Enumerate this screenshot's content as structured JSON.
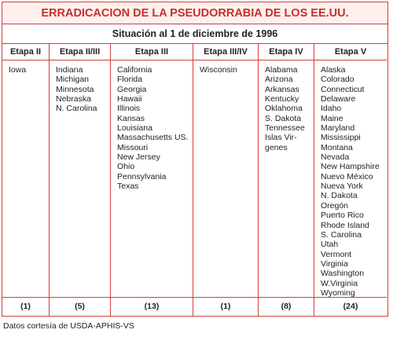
{
  "table": {
    "title": "ERRADICACION DE LA PSEUDORRABIA DE LOS EE.UU.",
    "subtitle": "Situación al 1 de diciembre de 1996",
    "columns": [
      {
        "header": "Etapa II",
        "items": [
          "Iowa"
        ],
        "count": "(1)"
      },
      {
        "header": "Etapa II/III",
        "items": [
          "Indiana",
          "Michigan",
          "Minnesota",
          "Nebraska",
          "N. Carolina"
        ],
        "count": "(5)"
      },
      {
        "header": "Etapa III",
        "items": [
          "California",
          "Florida",
          "Georgia",
          "Hawaii",
          "Illinois",
          "Kansas",
          "Louisiana",
          "Massachusetts US.",
          "Missouri",
          "New Jersey",
          "Ohio",
          "Pennsylvania",
          "Texas"
        ],
        "count": "(13)"
      },
      {
        "header": "Etapa III/IV",
        "items": [
          "Wisconsin"
        ],
        "count": "(1)"
      },
      {
        "header": "Etapa IV",
        "items": [
          "Alabama",
          "Arizona",
          "Arkansas",
          "Kentucky",
          "Oklahoma",
          "S. Dakota",
          "Tennessee",
          "Islas Vir-",
          "genes"
        ],
        "count": "(8)"
      },
      {
        "header": "Etapa V",
        "items": [
          "Alaska",
          "Colorado",
          "Connecticut",
          "Delaware",
          "Idaho",
          "Maine",
          "Maryland",
          "Mississippi",
          "Montana",
          "Nevada",
          "New Hampshire",
          "Nuevo México",
          "Nueva York",
          "N. Dakota",
          "Oregón",
          "Puerto Rico",
          "Rhode Island",
          "S. Carolina",
          "Utah",
          "Vermont",
          "Virginia",
          "Washington",
          "W.Virginia",
          "Wyoming"
        ],
        "count": "(24)"
      }
    ]
  },
  "source": "Datos cortesía de USDA-APHIS-VS"
}
